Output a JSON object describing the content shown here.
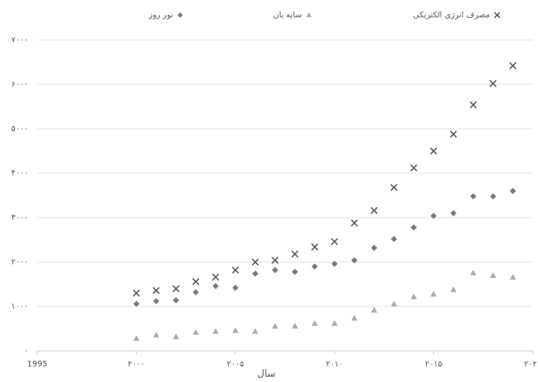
{
  "chart_data": {
    "type": "scatter",
    "x": [
      2000,
      2001,
      2002,
      2003,
      2004,
      2005,
      2006,
      2007,
      2008,
      2009,
      2010,
      2011,
      2012,
      2013,
      2014,
      2015,
      2016,
      2017,
      2018,
      2019
    ],
    "series": [
      {
        "name": "مصرف انرژی الکتریکی",
        "color": "#555555",
        "marker": "x",
        "values": [
          1300,
          1360,
          1400,
          1560,
          1660,
          1820,
          2000,
          2040,
          2180,
          2340,
          2460,
          2880,
          3160,
          3680,
          4120,
          4500,
          4880,
          5540,
          6020,
          6420
        ]
      },
      {
        "name": "سایه بان",
        "color": "#aaaaaa",
        "marker": "triangle",
        "values": [
          280,
          360,
          320,
          420,
          440,
          460,
          440,
          560,
          560,
          620,
          620,
          740,
          920,
          1060,
          1220,
          1280,
          1380,
          1760,
          1700,
          1660
        ]
      },
      {
        "name": "نور روز",
        "color": "#7a7a7a",
        "marker": "diamond",
        "values": [
          1060,
          1120,
          1140,
          1320,
          1460,
          1420,
          1740,
          1820,
          1780,
          1900,
          1960,
          2040,
          2320,
          2520,
          2780,
          3040,
          3100,
          3480,
          3480,
          3600
        ]
      }
    ],
    "x_label": "سال",
    "xlim": [
      1995,
      2020
    ],
    "xticks": [
      1995,
      {
        "value": 2000,
        "label": "۲۰۰۰"
      },
      {
        "value": 2005,
        "label": "۲۰۰۵"
      },
      {
        "value": 2010,
        "label": "۲۰۱۰"
      },
      {
        "value": 2015,
        "label": "۲۰۱۵"
      },
      {
        "value": 2020,
        "label": "۲۰۲۰"
      }
    ],
    "ylim": [
      0,
      7000
    ],
    "yticks": [
      {
        "value": 0,
        "label": "۰"
      },
      {
        "value": 1000,
        "label": "۱۰۰۰"
      },
      {
        "value": 2000,
        "label": "۲۰۰۰"
      },
      {
        "value": 3000,
        "label": "۳۰۰۰"
      },
      {
        "value": 4000,
        "label": "۴۰۰۰"
      },
      {
        "value": 5000,
        "label": "۵۰۰۰"
      },
      {
        "value": 6000,
        "label": "۶۰۰۰"
      },
      {
        "value": 7000,
        "label": "۷۰۰۰"
      }
    ],
    "grid": true,
    "legend": "top"
  }
}
